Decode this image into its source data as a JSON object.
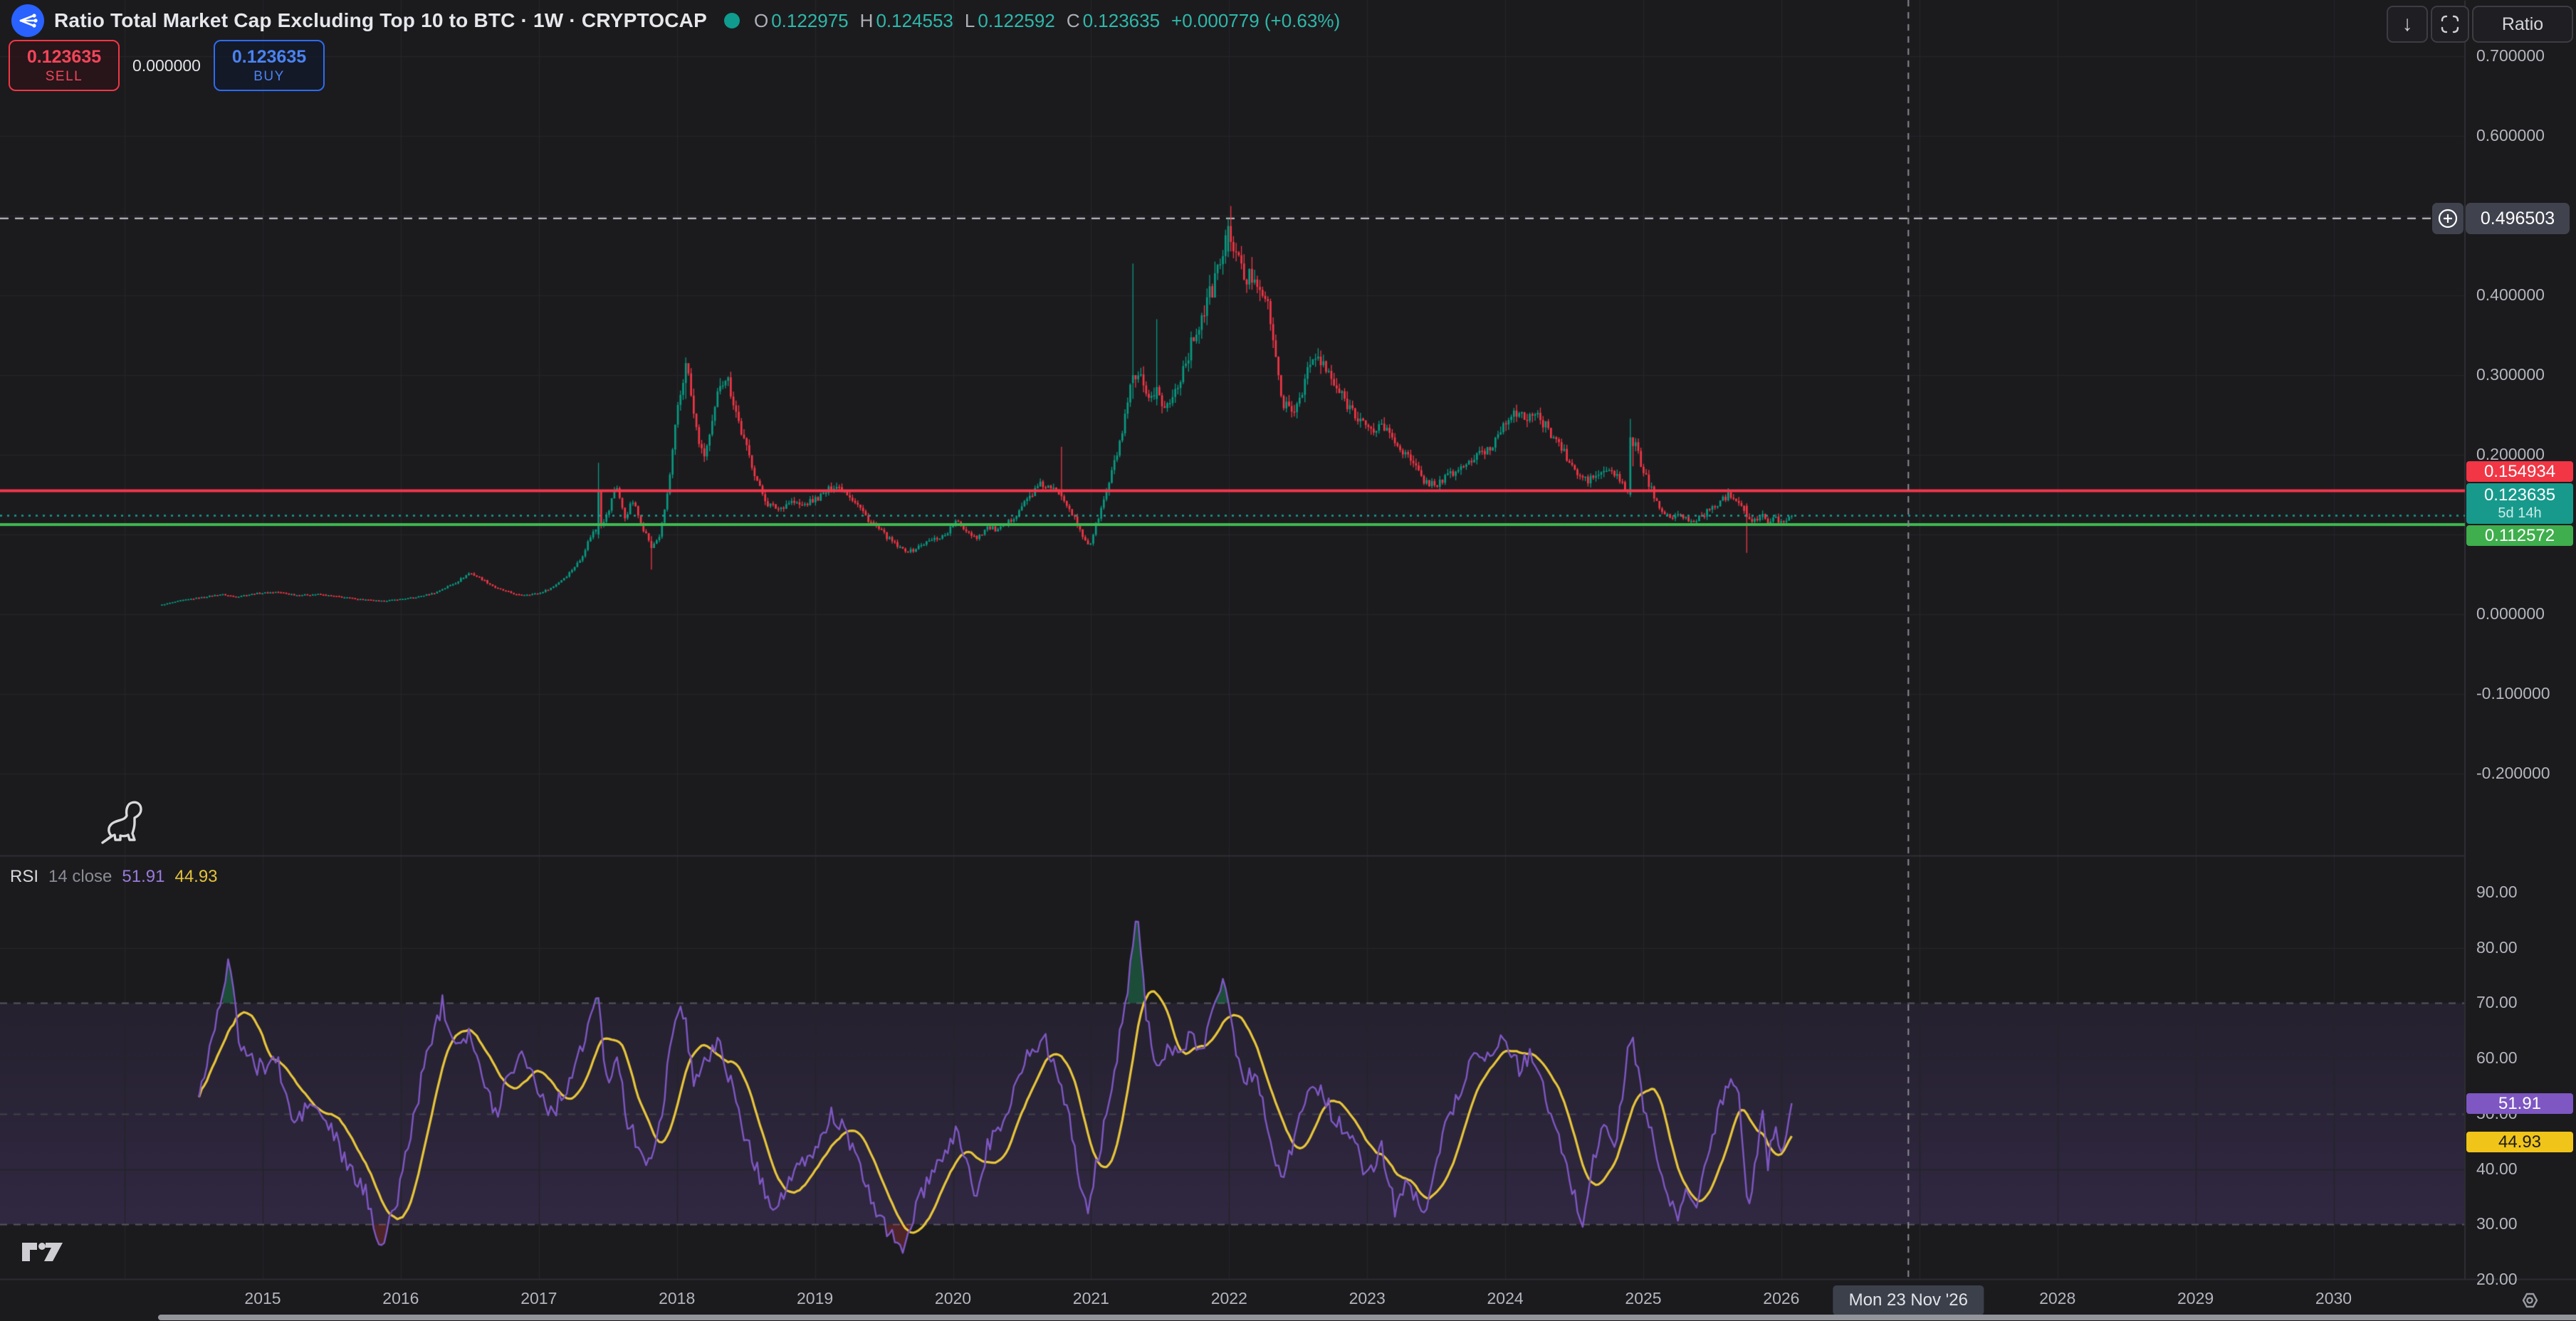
{
  "header": {
    "title": "Ratio Total Market Cap Excluding Top 10 to BTC · 1W · CRYPTOCAP",
    "status_dot_color": "#0f9c8e",
    "ohlc": {
      "open_label": "O",
      "open": "0.122975",
      "high_label": "H",
      "high": "0.124553",
      "low_label": "L",
      "low": "0.122592",
      "close_label": "C",
      "close": "0.123635",
      "change": "+0.000779 (+0.63%)"
    }
  },
  "trade_widget": {
    "sell_price": "0.123635",
    "sell_label": "SELL",
    "spread": "0.000000",
    "buy_price": "0.123635",
    "buy_label": "BUY"
  },
  "toolbar": {
    "download_icon": "↓",
    "scale_label": "Ratio"
  },
  "price_axis": {
    "labels": [
      {
        "value": 0.7,
        "text": "0.700000"
      },
      {
        "value": 0.6,
        "text": "0.600000"
      },
      {
        "value": 0.4,
        "text": "0.400000"
      },
      {
        "value": 0.3,
        "text": "0.300000"
      },
      {
        "value": 0.2,
        "text": "0.200000"
      },
      {
        "value": 0.0,
        "text": "0.000000"
      },
      {
        "value": -0.1,
        "text": "-0.100000"
      },
      {
        "value": -0.2,
        "text": "-0.200000"
      }
    ],
    "alert_badge": "0.496503",
    "sell_badge": "0.154934",
    "current_badge": "0.123635",
    "countdown": "5d 14h",
    "buy_badge": "0.112572"
  },
  "rsi": {
    "legend": {
      "name": "RSI",
      "params": "14 close",
      "value": "51.91",
      "ma": "44.93"
    },
    "value_badge": "51.91",
    "ma_badge": "44.93",
    "axis_labels": [
      {
        "value": 90,
        "text": "90.00"
      },
      {
        "value": 80,
        "text": "80.00"
      },
      {
        "value": 70,
        "text": "70.00"
      },
      {
        "value": 60,
        "text": "60.00"
      },
      {
        "value": 50,
        "text": "50.00"
      },
      {
        "value": 40,
        "text": "40.00"
      },
      {
        "value": 30,
        "text": "30.00"
      },
      {
        "value": 20,
        "text": "20.00"
      }
    ]
  },
  "time_axis": {
    "years": [
      "2015",
      "2016",
      "2017",
      "2018",
      "2019",
      "2020",
      "2021",
      "2022",
      "2023",
      "2024",
      "2025",
      "2026",
      "2027",
      "2028",
      "2029",
      "2030"
    ],
    "crosshair_date": "Mon 23 Nov '26",
    "crosshair_year": 2026.92
  },
  "colors": {
    "bg": "#1b1b1e",
    "grid": "#242429",
    "up": "#089981",
    "down": "#f23645",
    "sell_line": "#f4364c",
    "buy_line": "#3fb950",
    "current_line": "#14a095",
    "level_line": "#b9bac1",
    "crosshair": "#8b8b94",
    "separator": "#2e2e34",
    "rsi_line": "#7e57c2",
    "rsi_ma": "#e8c63a",
    "band_top": "rgba(126,87,194,0.10)",
    "band_bottom": "rgba(126,87,194,0.22)",
    "overbought_fill": "rgba(30,140,90,0.45)",
    "oversold_fill": "rgba(200,60,70,0.30)",
    "axis_text": "#b4b6bd"
  },
  "chart_data": {
    "type": "candlestick",
    "title": "Ratio Total Market Cap Excluding Top 10 to BTC",
    "interval": "1W",
    "source": "CRYPTOCAP",
    "x_unit": "decimal_year",
    "x_visible_range": [
      2013.1,
      2030.95
    ],
    "price_ylim_visible": [
      -0.303,
      0.77
    ],
    "grid_step": 0.1,
    "levels": {
      "resistance_sell": 0.154934,
      "support_buy": 0.112572,
      "last_price": 0.123635,
      "alert_level": 0.496503
    },
    "data_start": 2014.27,
    "data_end": 2026.09,
    "close_anchors": [
      [
        2014.27,
        0.012
      ],
      [
        2014.4,
        0.017
      ],
      [
        2014.55,
        0.021
      ],
      [
        2014.7,
        0.025
      ],
      [
        2014.8,
        0.022
      ],
      [
        2014.95,
        0.026
      ],
      [
        2015.1,
        0.028
      ],
      [
        2015.25,
        0.024
      ],
      [
        2015.4,
        0.025
      ],
      [
        2015.55,
        0.022
      ],
      [
        2015.7,
        0.019
      ],
      [
        2015.85,
        0.0165
      ],
      [
        2015.95,
        0.018
      ],
      [
        2016.1,
        0.021
      ],
      [
        2016.25,
        0.027
      ],
      [
        2016.4,
        0.04
      ],
      [
        2016.5,
        0.052
      ],
      [
        2016.58,
        0.045
      ],
      [
        2016.7,
        0.032
      ],
      [
        2016.85,
        0.024
      ],
      [
        2017.0,
        0.026
      ],
      [
        2017.1,
        0.034
      ],
      [
        2017.2,
        0.048
      ],
      [
        2017.3,
        0.068
      ],
      [
        2017.38,
        0.1
      ],
      [
        2017.5,
        0.125
      ],
      [
        2017.56,
        0.165
      ],
      [
        2017.62,
        0.12
      ],
      [
        2017.68,
        0.142
      ],
      [
        2017.75,
        0.11
      ],
      [
        2017.82,
        0.085
      ],
      [
        2017.88,
        0.1
      ],
      [
        2017.94,
        0.16
      ],
      [
        2018.0,
        0.25
      ],
      [
        2018.07,
        0.315
      ],
      [
        2018.13,
        0.24
      ],
      [
        2018.19,
        0.195
      ],
      [
        2018.25,
        0.23
      ],
      [
        2018.31,
        0.29
      ],
      [
        2018.36,
        0.3
      ],
      [
        2018.42,
        0.26
      ],
      [
        2018.48,
        0.22
      ],
      [
        2018.54,
        0.19
      ],
      [
        2018.6,
        0.158
      ],
      [
        2018.66,
        0.138
      ],
      [
        2018.74,
        0.132
      ],
      [
        2018.82,
        0.142
      ],
      [
        2018.9,
        0.136
      ],
      [
        2018.98,
        0.142
      ],
      [
        2019.06,
        0.15
      ],
      [
        2019.14,
        0.162
      ],
      [
        2019.22,
        0.155
      ],
      [
        2019.3,
        0.14
      ],
      [
        2019.38,
        0.12
      ],
      [
        2019.46,
        0.107
      ],
      [
        2019.54,
        0.094
      ],
      [
        2019.62,
        0.082
      ],
      [
        2019.7,
        0.079
      ],
      [
        2019.78,
        0.088
      ],
      [
        2019.86,
        0.094
      ],
      [
        2019.94,
        0.099
      ],
      [
        2020.02,
        0.116
      ],
      [
        2020.1,
        0.105
      ],
      [
        2020.17,
        0.096
      ],
      [
        2020.25,
        0.109
      ],
      [
        2020.33,
        0.105
      ],
      [
        2020.41,
        0.116
      ],
      [
        2020.49,
        0.134
      ],
      [
        2020.57,
        0.151
      ],
      [
        2020.64,
        0.163
      ],
      [
        2020.72,
        0.156
      ],
      [
        2020.79,
        0.151
      ],
      [
        2020.86,
        0.128
      ],
      [
        2020.93,
        0.1
      ],
      [
        2020.99,
        0.086
      ],
      [
        2021.05,
        0.12
      ],
      [
        2021.11,
        0.152
      ],
      [
        2021.17,
        0.19
      ],
      [
        2021.23,
        0.23
      ],
      [
        2021.29,
        0.285
      ],
      [
        2021.35,
        0.3
      ],
      [
        2021.41,
        0.262
      ],
      [
        2021.47,
        0.285
      ],
      [
        2021.53,
        0.256
      ],
      [
        2021.59,
        0.272
      ],
      [
        2021.65,
        0.3
      ],
      [
        2021.71,
        0.33
      ],
      [
        2021.77,
        0.36
      ],
      [
        2021.83,
        0.385
      ],
      [
        2021.89,
        0.415
      ],
      [
        2021.95,
        0.452
      ],
      [
        2022.0,
        0.487
      ],
      [
        2022.06,
        0.445
      ],
      [
        2022.12,
        0.418
      ],
      [
        2022.18,
        0.428
      ],
      [
        2022.24,
        0.408
      ],
      [
        2022.3,
        0.37
      ],
      [
        2022.35,
        0.3
      ],
      [
        2022.4,
        0.263
      ],
      [
        2022.46,
        0.25
      ],
      [
        2022.52,
        0.278
      ],
      [
        2022.58,
        0.312
      ],
      [
        2022.64,
        0.322
      ],
      [
        2022.7,
        0.306
      ],
      [
        2022.76,
        0.288
      ],
      [
        2022.82,
        0.272
      ],
      [
        2022.88,
        0.259
      ],
      [
        2022.95,
        0.246
      ],
      [
        2023.02,
        0.227
      ],
      [
        2023.1,
        0.239
      ],
      [
        2023.18,
        0.222
      ],
      [
        2023.26,
        0.205
      ],
      [
        2023.34,
        0.186
      ],
      [
        2023.42,
        0.166
      ],
      [
        2023.5,
        0.163
      ],
      [
        2023.58,
        0.173
      ],
      [
        2023.66,
        0.181
      ],
      [
        2023.74,
        0.191
      ],
      [
        2023.82,
        0.201
      ],
      [
        2023.9,
        0.209
      ],
      [
        2023.98,
        0.238
      ],
      [
        2024.04,
        0.253
      ],
      [
        2024.12,
        0.246
      ],
      [
        2024.2,
        0.252
      ],
      [
        2024.28,
        0.238
      ],
      [
        2024.36,
        0.222
      ],
      [
        2024.44,
        0.198
      ],
      [
        2024.52,
        0.175
      ],
      [
        2024.6,
        0.168
      ],
      [
        2024.68,
        0.176
      ],
      [
        2024.76,
        0.181
      ],
      [
        2024.83,
        0.169
      ],
      [
        2024.88,
        0.148
      ],
      [
        2024.93,
        0.22
      ],
      [
        2024.98,
        0.19
      ],
      [
        2025.04,
        0.163
      ],
      [
        2025.1,
        0.14
      ],
      [
        2025.16,
        0.127
      ],
      [
        2025.22,
        0.119
      ],
      [
        2025.28,
        0.126
      ],
      [
        2025.34,
        0.114
      ],
      [
        2025.4,
        0.121
      ],
      [
        2025.46,
        0.128
      ],
      [
        2025.52,
        0.136
      ],
      [
        2025.58,
        0.146
      ],
      [
        2025.64,
        0.151
      ],
      [
        2025.7,
        0.141
      ],
      [
        2025.76,
        0.121
      ],
      [
        2025.82,
        0.118
      ],
      [
        2025.86,
        0.126
      ],
      [
        2025.9,
        0.112
      ],
      [
        2025.95,
        0.121
      ],
      [
        2026.0,
        0.116
      ],
      [
        2026.09,
        0.123635
      ]
    ],
    "special_candles": [
      [
        2017.44,
        0.1,
        0.19,
        0.095,
        0.155
      ],
      [
        2017.82,
        0.092,
        0.098,
        0.056,
        0.083
      ],
      [
        2018.07,
        0.29,
        0.322,
        0.27,
        0.315
      ],
      [
        2020.79,
        0.156,
        0.21,
        0.143,
        0.148
      ],
      [
        2021.31,
        0.29,
        0.44,
        0.27,
        0.3
      ],
      [
        2021.47,
        0.27,
        0.37,
        0.262,
        0.285
      ],
      [
        2022.0,
        0.455,
        0.4965,
        0.448,
        0.487
      ],
      [
        2024.91,
        0.15,
        0.245,
        0.147,
        0.222
      ],
      [
        2025.75,
        0.136,
        0.139,
        0.077,
        0.122
      ]
    ],
    "rsi_panel": {
      "type": "line",
      "name": "RSI",
      "length": 14,
      "price_source": "close",
      "last": 51.91,
      "ma_last": 44.93,
      "ylim_visible": [
        15.5,
        92
      ],
      "overbought": 70,
      "midline": 50,
      "oversold": 30,
      "anchors": [
        [
          2014.55,
          54
        ],
        [
          2014.7,
          72
        ],
        [
          2014.76,
          78
        ],
        [
          2014.82,
          64
        ],
        [
          2014.95,
          58
        ],
        [
          2015.1,
          60
        ],
        [
          2015.22,
          48
        ],
        [
          2015.35,
          52
        ],
        [
          2015.5,
          47
        ],
        [
          2015.62,
          40
        ],
        [
          2015.74,
          36
        ],
        [
          2015.86,
          26
        ],
        [
          2015.95,
          32
        ],
        [
          2016.05,
          44
        ],
        [
          2016.2,
          62
        ],
        [
          2016.3,
          70
        ],
        [
          2016.4,
          63
        ],
        [
          2016.5,
          65
        ],
        [
          2016.6,
          55
        ],
        [
          2016.7,
          50
        ],
        [
          2016.78,
          58
        ],
        [
          2016.9,
          61
        ],
        [
          2017.0,
          54
        ],
        [
          2017.1,
          50
        ],
        [
          2017.22,
          56
        ],
        [
          2017.32,
          62
        ],
        [
          2017.42,
          72
        ],
        [
          2017.5,
          55
        ],
        [
          2017.56,
          62
        ],
        [
          2017.64,
          48
        ],
        [
          2017.74,
          44
        ],
        [
          2017.82,
          40
        ],
        [
          2017.9,
          52
        ],
        [
          2017.97,
          66
        ],
        [
          2018.05,
          69
        ],
        [
          2018.12,
          56
        ],
        [
          2018.22,
          60
        ],
        [
          2018.32,
          63
        ],
        [
          2018.42,
          52
        ],
        [
          2018.52,
          44
        ],
        [
          2018.62,
          37
        ],
        [
          2018.72,
          33
        ],
        [
          2018.82,
          38
        ],
        [
          2018.92,
          41
        ],
        [
          2019.02,
          44
        ],
        [
          2019.12,
          50
        ],
        [
          2019.22,
          47
        ],
        [
          2019.32,
          40
        ],
        [
          2019.42,
          34
        ],
        [
          2019.52,
          29
        ],
        [
          2019.62,
          25
        ],
        [
          2019.72,
          32
        ],
        [
          2019.82,
          38
        ],
        [
          2019.92,
          41
        ],
        [
          2020.02,
          47
        ],
        [
          2020.1,
          42
        ],
        [
          2020.17,
          34
        ],
        [
          2020.25,
          44
        ],
        [
          2020.35,
          48
        ],
        [
          2020.45,
          55
        ],
        [
          2020.55,
          61
        ],
        [
          2020.65,
          64
        ],
        [
          2020.75,
          58
        ],
        [
          2020.82,
          52
        ],
        [
          2020.9,
          40
        ],
        [
          2020.97,
          32
        ],
        [
          2021.05,
          42
        ],
        [
          2021.15,
          55
        ],
        [
          2021.25,
          70
        ],
        [
          2021.33,
          88
        ],
        [
          2021.4,
          68
        ],
        [
          2021.48,
          58
        ],
        [
          2021.56,
          62
        ],
        [
          2021.64,
          60
        ],
        [
          2021.72,
          64
        ],
        [
          2021.8,
          62
        ],
        [
          2021.88,
          68
        ],
        [
          2021.96,
          76
        ],
        [
          2022.04,
          62
        ],
        [
          2022.12,
          56
        ],
        [
          2022.2,
          58
        ],
        [
          2022.3,
          45
        ],
        [
          2022.38,
          39
        ],
        [
          2022.46,
          44
        ],
        [
          2022.54,
          52
        ],
        [
          2022.62,
          56
        ],
        [
          2022.7,
          52
        ],
        [
          2022.8,
          48
        ],
        [
          2022.9,
          45
        ],
        [
          2023.0,
          38
        ],
        [
          2023.1,
          44
        ],
        [
          2023.2,
          33
        ],
        [
          2023.3,
          38
        ],
        [
          2023.4,
          31
        ],
        [
          2023.5,
          42
        ],
        [
          2023.6,
          50
        ],
        [
          2023.7,
          56
        ],
        [
          2023.8,
          62
        ],
        [
          2023.9,
          60
        ],
        [
          2024.0,
          64
        ],
        [
          2024.1,
          58
        ],
        [
          2024.2,
          61
        ],
        [
          2024.3,
          52
        ],
        [
          2024.4,
          44
        ],
        [
          2024.48,
          37
        ],
        [
          2024.56,
          30
        ],
        [
          2024.64,
          42
        ],
        [
          2024.72,
          48
        ],
        [
          2024.8,
          44
        ],
        [
          2024.88,
          60
        ],
        [
          2024.92,
          64
        ],
        [
          2025.0,
          52
        ],
        [
          2025.08,
          44
        ],
        [
          2025.16,
          36
        ],
        [
          2025.24,
          31
        ],
        [
          2025.32,
          36
        ],
        [
          2025.4,
          34
        ],
        [
          2025.48,
          44
        ],
        [
          2025.56,
          52
        ],
        [
          2025.64,
          58
        ],
        [
          2025.7,
          52
        ],
        [
          2025.76,
          31
        ],
        [
          2025.82,
          42
        ],
        [
          2025.86,
          52
        ],
        [
          2025.9,
          41
        ],
        [
          2025.95,
          47
        ],
        [
          2026.0,
          44
        ],
        [
          2026.09,
          51.91
        ]
      ]
    }
  }
}
